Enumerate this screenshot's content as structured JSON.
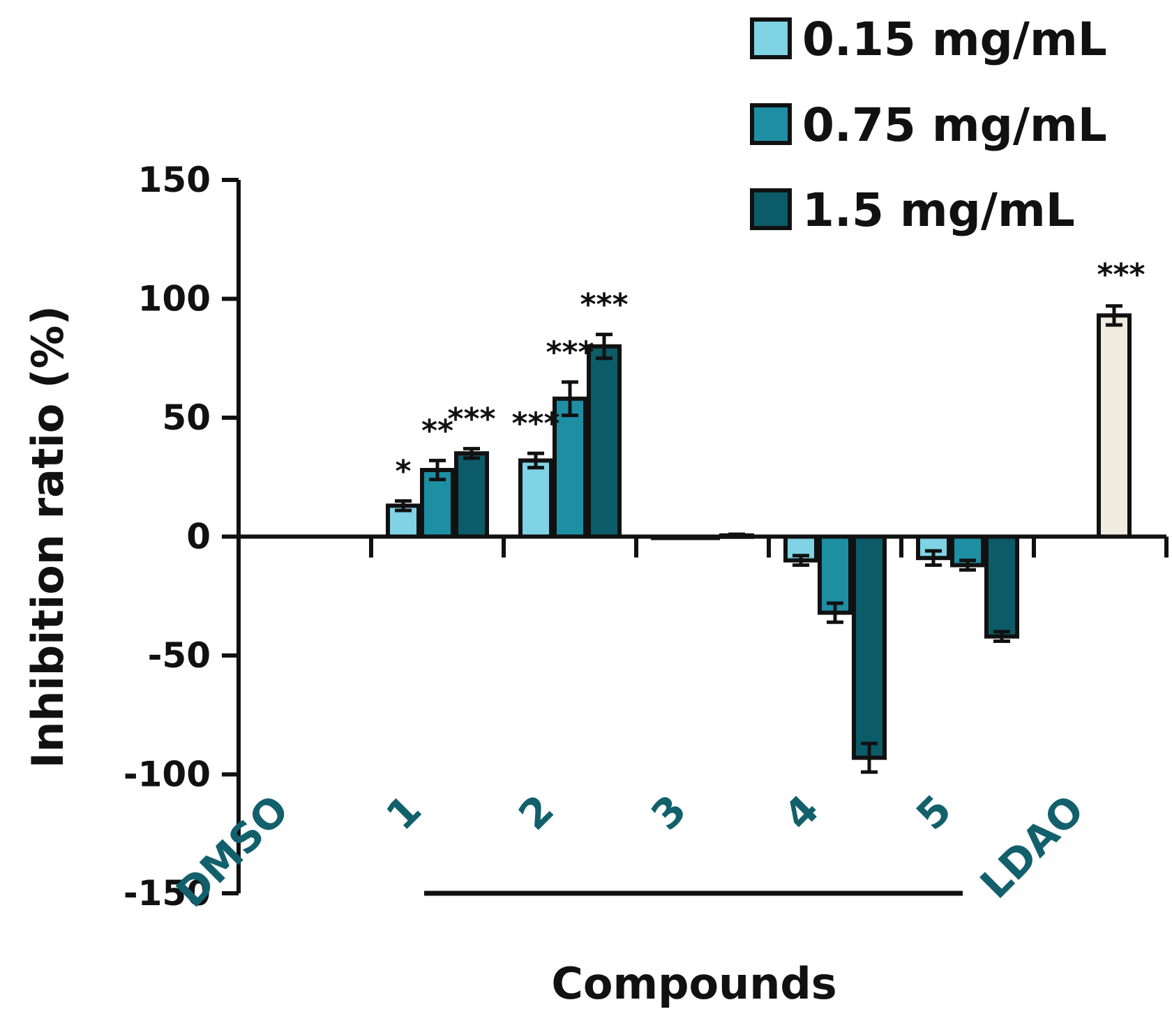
{
  "chart_data": {
    "type": "bar",
    "title": "",
    "xlabel": "Compounds",
    "ylabel": "Inhibition ratio (%)",
    "ylim": [
      -150,
      150
    ],
    "yticks": [
      -150,
      -100,
      -50,
      0,
      50,
      100,
      150
    ],
    "grid": false,
    "legend_position": "top-right",
    "categories": [
      "DMSO",
      "1",
      "2",
      "3",
      "4",
      "5",
      "LDAO"
    ],
    "series": [
      {
        "name": "0.15 mg/mL",
        "color": "#7fd3e4",
        "values": [
          null,
          13,
          32,
          0,
          -10,
          -9,
          null
        ],
        "errors": [
          null,
          2,
          3,
          0,
          2,
          3,
          null
        ],
        "significance": [
          "",
          "*",
          "***",
          "",
          "",
          "",
          ""
        ]
      },
      {
        "name": "0.75 mg/mL",
        "color": "#1e8ea3",
        "values": [
          null,
          28,
          58,
          0,
          -32,
          -12,
          null
        ],
        "errors": [
          null,
          4,
          7,
          0,
          4,
          2,
          null
        ],
        "significance": [
          "",
          "**",
          "***",
          "",
          "",
          "",
          ""
        ]
      },
      {
        "name": "1.5 mg/mL",
        "color": "#0c5b68",
        "values": [
          null,
          35,
          80,
          0.5,
          -93,
          -42,
          null
        ],
        "errors": [
          null,
          2,
          5,
          0.5,
          6,
          2,
          null
        ],
        "significance": [
          "",
          "***",
          "***",
          "",
          "",
          "",
          ""
        ]
      }
    ],
    "control": {
      "category": "LDAO",
      "value": 93,
      "error": 4,
      "color": "#f0ede0",
      "significance": "***"
    }
  }
}
